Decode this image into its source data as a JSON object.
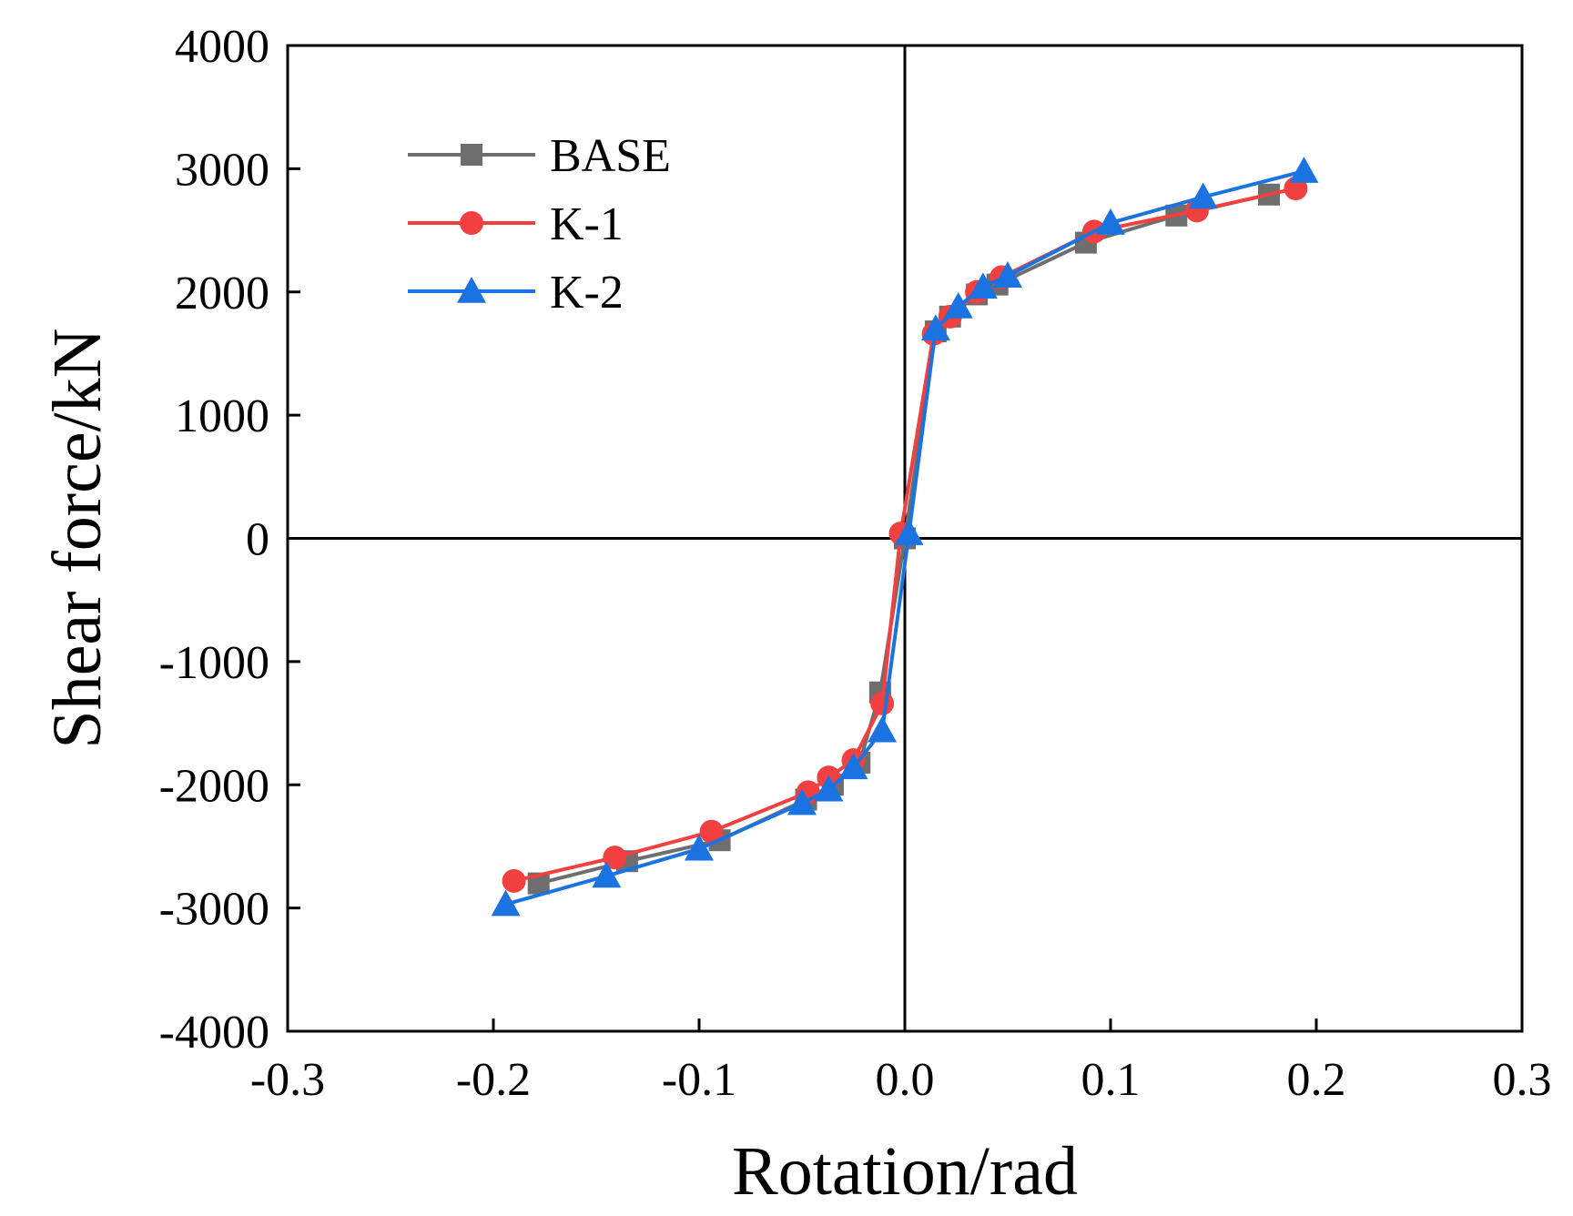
{
  "chart_data": {
    "type": "line",
    "title": "",
    "xlabel": "Rotation/rad",
    "ylabel": "Shear force/kN",
    "xlim": [
      -0.3,
      0.3
    ],
    "ylim": [
      -4000,
      4000
    ],
    "xticks": [
      -0.3,
      -0.2,
      -0.1,
      0.0,
      0.1,
      0.2,
      0.3
    ],
    "xtick_labels": [
      "-0.3",
      "-0.2",
      "-0.1",
      "0.0",
      "0.1",
      "0.2",
      "0.3"
    ],
    "yticks": [
      -4000,
      -3000,
      -2000,
      -1000,
      0,
      1000,
      2000,
      3000,
      4000
    ],
    "ytick_labels": [
      "-4000",
      "-3000",
      "-2000",
      "-1000",
      "0",
      "1000",
      "2000",
      "3000",
      "4000"
    ],
    "grid": false,
    "zero_lines": true,
    "legend_position": "top-left",
    "series": [
      {
        "name": "BASE",
        "color": "#6e6e6e",
        "marker": "square",
        "x": [
          -0.178,
          -0.135,
          -0.09,
          -0.048,
          -0.035,
          -0.022,
          -0.012,
          0.0,
          0.015,
          0.022,
          0.035,
          0.045,
          0.088,
          0.132,
          0.177
        ],
        "y": [
          -2800,
          -2620,
          -2450,
          -2120,
          -2000,
          -1820,
          -1250,
          0,
          1680,
          1800,
          1980,
          2060,
          2400,
          2620,
          2790
        ]
      },
      {
        "name": "K-1",
        "color": "#f23f3f",
        "marker": "circle",
        "x": [
          -0.19,
          -0.141,
          -0.094,
          -0.047,
          -0.037,
          -0.025,
          -0.011,
          -0.002,
          0.014,
          0.022,
          0.035,
          0.047,
          0.092,
          0.142,
          0.19
        ],
        "y": [
          -2780,
          -2590,
          -2380,
          -2060,
          -1940,
          -1800,
          -1340,
          40,
          1660,
          1800,
          2000,
          2120,
          2490,
          2660,
          2840
        ]
      },
      {
        "name": "K-2",
        "color": "#1a73e0",
        "marker": "triangle",
        "x": [
          -0.194,
          -0.145,
          -0.1,
          -0.05,
          -0.037,
          -0.025,
          -0.011,
          0.002,
          0.015,
          0.026,
          0.038,
          0.05,
          0.1,
          0.145,
          0.194
        ],
        "y": [
          -2970,
          -2740,
          -2520,
          -2150,
          -2040,
          -1860,
          -1560,
          40,
          1700,
          1880,
          2040,
          2130,
          2560,
          2770,
          2980
        ]
      }
    ]
  }
}
